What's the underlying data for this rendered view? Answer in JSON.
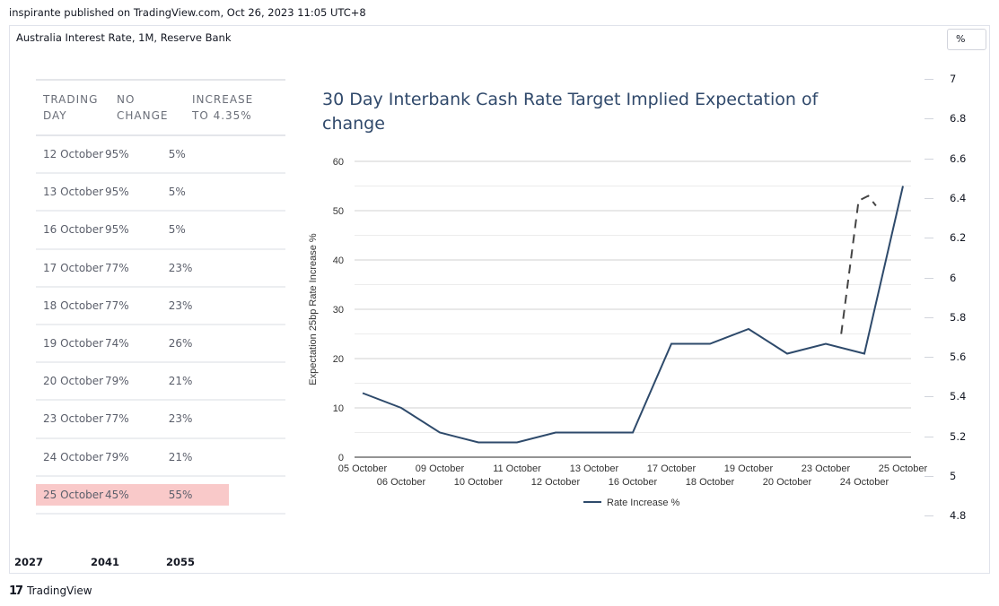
{
  "header": {
    "published_text": "inspirante published on TradingView.com, Oct 26, 2023 11:05 UTC+8"
  },
  "symbol_title": "Australia Interest Rate, 1M, Reserve Bank",
  "unit_button": "%",
  "right_scale": {
    "ticks": [
      "7",
      "6.8",
      "6.6",
      "6.4",
      "6.2",
      "6",
      "5.8",
      "5.6",
      "5.4",
      "5.2",
      "5",
      "4.8"
    ]
  },
  "time_axis": {
    "years": [
      "2027",
      "2041",
      "2055"
    ]
  },
  "branding": {
    "logo_text": "TradingView",
    "logo_mark": "17"
  },
  "table": {
    "headers": [
      [
        "TRADING",
        "DAY"
      ],
      [
        "NO",
        "CHANGE"
      ],
      [
        "INCREASE",
        "TO 4.35%"
      ]
    ],
    "rows": [
      {
        "day": "12 October",
        "no_change": "95%",
        "increase": "5%"
      },
      {
        "day": "13 October",
        "no_change": "95%",
        "increase": "5%"
      },
      {
        "day": "16 October",
        "no_change": "95%",
        "increase": "5%"
      },
      {
        "day": "17 October",
        "no_change": "77%",
        "increase": "23%"
      },
      {
        "day": "18 October",
        "no_change": "77%",
        "increase": "23%"
      },
      {
        "day": "19 October",
        "no_change": "74%",
        "increase": "26%"
      },
      {
        "day": "20 October",
        "no_change": "79%",
        "increase": "21%"
      },
      {
        "day": "23 October",
        "no_change": "77%",
        "increase": "23%"
      },
      {
        "day": "24 October",
        "no_change": "79%",
        "increase": "21%"
      },
      {
        "day": "25 October",
        "no_change": "45%",
        "increase": "55%",
        "highlight": true
      }
    ],
    "highlight_color": "#f9c9c9"
  },
  "chart_data": {
    "type": "line",
    "title": "30 Day Interbank Cash Rate Target Implied Expectation of change",
    "title_lines": [
      "30 Day Interbank Cash Rate Target Implied Expectation of",
      "change"
    ],
    "ylabel": "Expectation 25bp Rate Increase %",
    "xlabel": "",
    "ylim": [
      0,
      60
    ],
    "yticks": [
      "0",
      "10",
      "20",
      "30",
      "40",
      "50",
      "60"
    ],
    "grid": true,
    "legend": "bottom-center",
    "categories": [
      "05 October",
      "06 October",
      "09 October",
      "10 October",
      "11 October",
      "12 October",
      "13 October",
      "16 October",
      "17 October",
      "18 October",
      "19 October",
      "20 October",
      "23 October",
      "24 October",
      "25 October"
    ],
    "series": [
      {
        "name": "Rate Increase %",
        "color": "#2e4a6b",
        "values": [
          13,
          10,
          5,
          3,
          3,
          5,
          5,
          5,
          23,
          23,
          26,
          21,
          23,
          21,
          55
        ]
      }
    ],
    "projection": {
      "style": "dashed",
      "color": "#444444",
      "points": [
        {
          "x": "23 October",
          "offset": 0.4,
          "y": 25
        },
        {
          "x": "24 October",
          "offset": -0.15,
          "y": 52
        },
        {
          "x": "24 October",
          "offset": 0.1,
          "y": 53
        },
        {
          "x": "24 October",
          "offset": 0.3,
          "y": 51
        }
      ]
    }
  }
}
